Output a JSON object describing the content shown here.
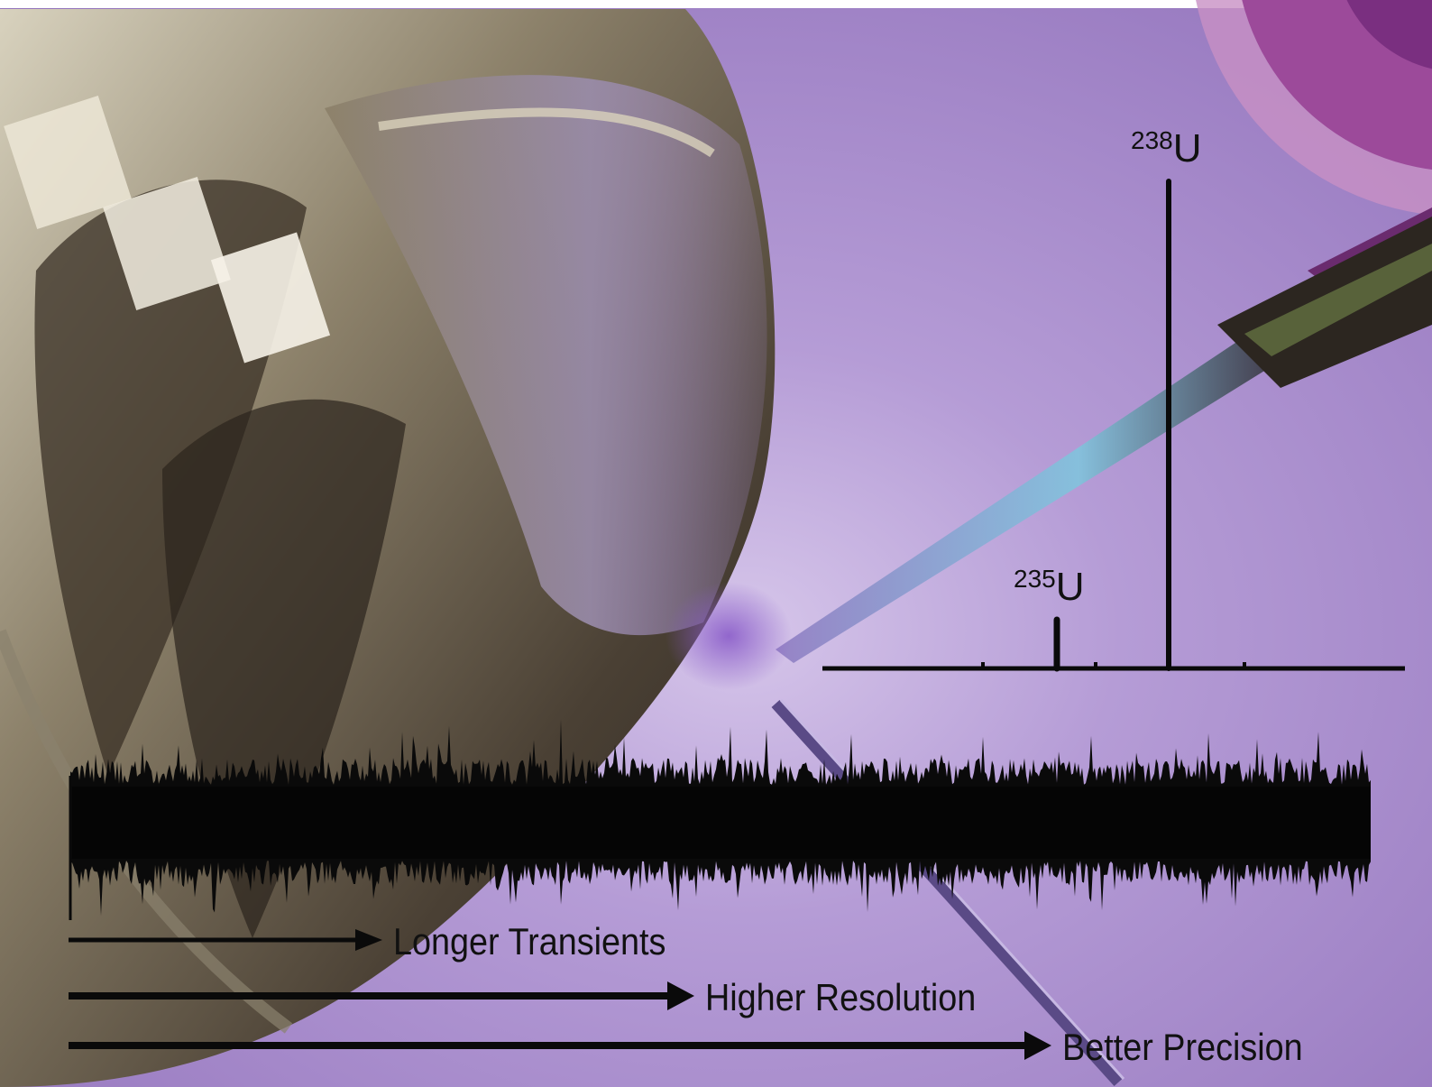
{
  "colors": {
    "background_purple": "#a58bc8",
    "orbitrap_metal_dark": "#3f362c",
    "orbitrap_metal_light": "#a89f86",
    "ink": "#0a0a0a",
    "corner_magenta": "#8e3f8f"
  },
  "spectrum": {
    "peaks": [
      {
        "mass_number": "235",
        "element": "U",
        "relative_height": 0.1
      },
      {
        "mass_number": "238",
        "element": "U",
        "relative_height": 1.0
      }
    ]
  },
  "transient": {
    "description_icon": "noisy-transient-signal"
  },
  "arrows": [
    {
      "label": "Longer Transients",
      "relative_length": 0.25
    },
    {
      "label": "Higher Resolution",
      "relative_length": 0.5
    },
    {
      "label": "Better Precision",
      "relative_length": 0.75
    }
  ]
}
